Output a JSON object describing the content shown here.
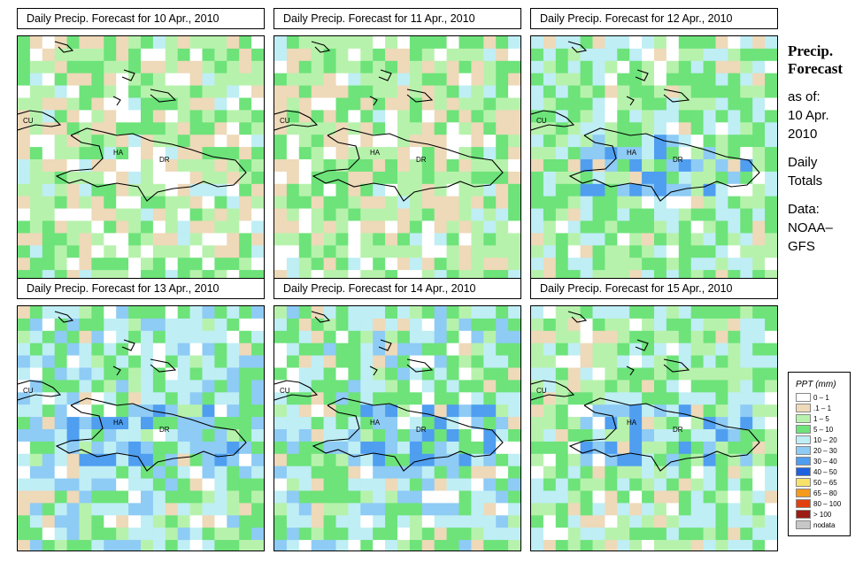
{
  "panels": [
    {
      "title": "Daily Precip. Forecast for  10 Apr., 2010",
      "seed": 11,
      "base": "light"
    },
    {
      "title": "Daily Precip. Forecast for  11 Apr., 2010",
      "seed": 23,
      "base": "light"
    },
    {
      "title": "Daily Precip. Forecast for  12 Apr., 2010",
      "seed": 37,
      "base": "mixed"
    },
    {
      "title": "Daily Precip. Forecast for  13 Apr., 2010",
      "seed": 41,
      "base": "wet"
    },
    {
      "title": "Daily Precip. Forecast for  14 Apr., 2010",
      "seed": 53,
      "base": "wet"
    },
    {
      "title": "Daily Precip. Forecast for  15 Apr., 2010",
      "seed": 67,
      "base": "mixed"
    }
  ],
  "map_labels": {
    "cuba": "CU",
    "haiti": "HA",
    "dominican_republic": "DR"
  },
  "sidebar": {
    "title_line1": "Precip.",
    "title_line2": "Forecast",
    "asof_line1": "as of:",
    "asof_line2": "10 Apr.",
    "asof_line3": "2010",
    "totals_line1": "Daily",
    "totals_line2": "Totals",
    "data_line1": "Data:",
    "data_line2": "NOAA–",
    "data_line3": "GFS"
  },
  "legend": {
    "title": "PPT (mm)",
    "items": [
      {
        "label": "0 – 1",
        "color": "#ffffff"
      },
      {
        "label": ".1 – 1",
        "color": "#eed9b9"
      },
      {
        "label": "1 – 5",
        "color": "#b7f2ac"
      },
      {
        "label": "5 – 10",
        "color": "#6de37a"
      },
      {
        "label": "10 – 20",
        "color": "#bfeef5"
      },
      {
        "label": "20 – 30",
        "color": "#8ecbf5"
      },
      {
        "label": "30 – 40",
        "color": "#4f9ef0"
      },
      {
        "label": "40 – 50",
        "color": "#1f62e0"
      },
      {
        "label": "50 – 65",
        "color": "#f7e36a"
      },
      {
        "label": "65 – 80",
        "color": "#f59a1a"
      },
      {
        "label": "80 – 100",
        "color": "#e2400e"
      },
      {
        "label": "> 100",
        "color": "#9b1d13"
      },
      {
        "label": "nodata",
        "color": "#c7c7c7"
      }
    ]
  }
}
